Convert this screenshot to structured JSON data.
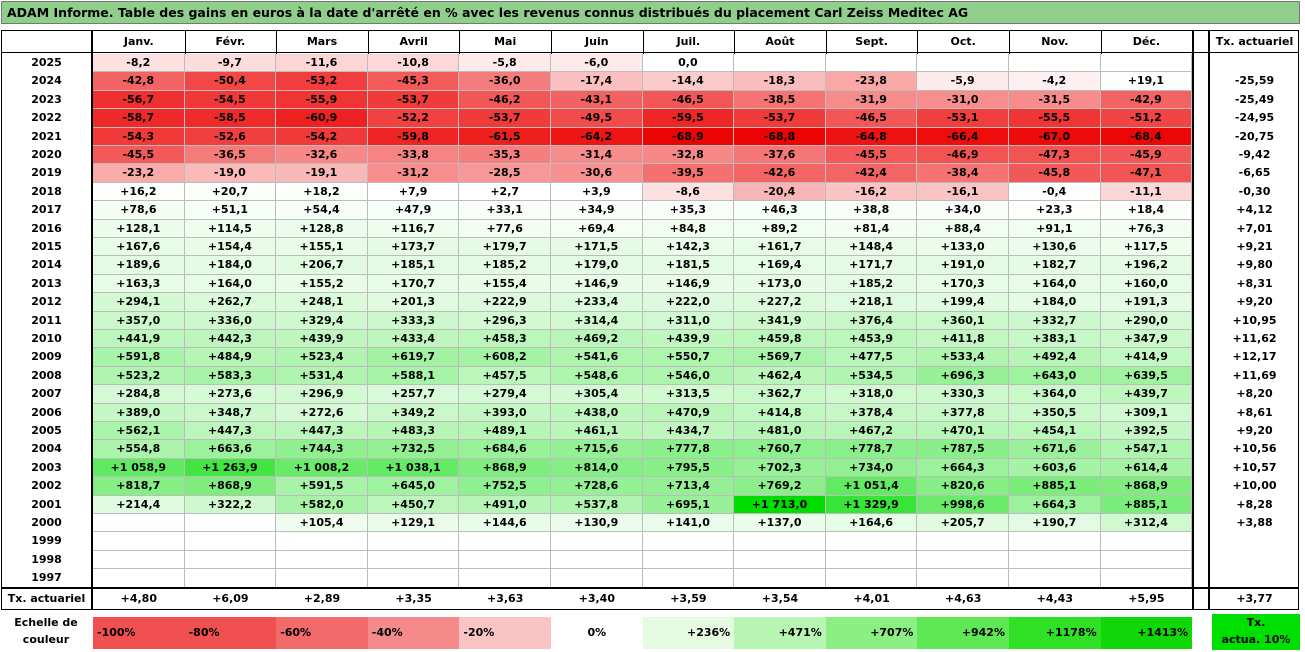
{
  "title": "ADAM Informe. Table des gains en euros à la date d'arrêté en % avec les revenus connus distribués du placement Carl Zeiss Meditec AG",
  "chart_data": {
    "type": "table",
    "months": [
      "Janv.",
      "Févr.",
      "Mars",
      "Avril",
      "Mai",
      "Juin",
      "Juil.",
      "Août",
      "Sept.",
      "Oct.",
      "Nov.",
      "Déc."
    ],
    "actuarial_header": "Tx. actuariel",
    "rows": [
      {
        "year": "2025",
        "values": [
          "-8,2",
          "-9,7",
          "-11,6",
          "-10,8",
          "-5,8",
          "-6,0",
          "0,0",
          "",
          "",
          "",
          "",
          ""
        ],
        "actuarial": ""
      },
      {
        "year": "2024",
        "values": [
          "-42,8",
          "-50,4",
          "-53,2",
          "-45,3",
          "-36,0",
          "-17,4",
          "-14,4",
          "-18,3",
          "-23,8",
          "-5,9",
          "-4,2",
          "+19,1"
        ],
        "actuarial": "-25,59"
      },
      {
        "year": "2023",
        "values": [
          "-56,7",
          "-54,5",
          "-55,9",
          "-53,7",
          "-46,2",
          "-43,1",
          "-46,5",
          "-38,5",
          "-31,9",
          "-31,0",
          "-31,5",
          "-42,9"
        ],
        "actuarial": "-25,49"
      },
      {
        "year": "2022",
        "values": [
          "-58,7",
          "-58,5",
          "-60,9",
          "-52,2",
          "-53,7",
          "-49,5",
          "-59,5",
          "-53,7",
          "-46,5",
          "-53,1",
          "-55,5",
          "-51,2"
        ],
        "actuarial": "-24,95"
      },
      {
        "year": "2021",
        "values": [
          "-54,3",
          "-52,6",
          "-54,2",
          "-59,8",
          "-61,5",
          "-64,2",
          "-68,9",
          "-68,8",
          "-64,8",
          "-66,4",
          "-67,0",
          "-68,4"
        ],
        "actuarial": "-20,75"
      },
      {
        "year": "2020",
        "values": [
          "-45,5",
          "-36,5",
          "-32,6",
          "-33,8",
          "-35,3",
          "-31,4",
          "-32,8",
          "-37,6",
          "-45,5",
          "-46,9",
          "-47,3",
          "-45,9"
        ],
        "actuarial": "-9,42"
      },
      {
        "year": "2019",
        "values": [
          "-23,2",
          "-19,0",
          "-19,1",
          "-31,2",
          "-28,5",
          "-30,6",
          "-39,5",
          "-42,6",
          "-42,4",
          "-38,4",
          "-45,8",
          "-47,1"
        ],
        "actuarial": "-6,65"
      },
      {
        "year": "2018",
        "values": [
          "+16,2",
          "+20,7",
          "+18,2",
          "+7,9",
          "+2,7",
          "+3,9",
          "-8,6",
          "-20,4",
          "-16,2",
          "-16,1",
          "-0,4",
          "-11,1"
        ],
        "actuarial": "-0,30"
      },
      {
        "year": "2017",
        "values": [
          "+78,6",
          "+51,1",
          "+54,4",
          "+47,9",
          "+33,1",
          "+34,9",
          "+35,3",
          "+46,3",
          "+38,8",
          "+34,0",
          "+23,3",
          "+18,4"
        ],
        "actuarial": "+4,12"
      },
      {
        "year": "2016",
        "values": [
          "+128,1",
          "+114,5",
          "+128,8",
          "+116,7",
          "+77,6",
          "+69,4",
          "+84,8",
          "+89,2",
          "+81,4",
          "+88,4",
          "+91,1",
          "+76,3"
        ],
        "actuarial": "+7,01"
      },
      {
        "year": "2015",
        "values": [
          "+167,6",
          "+154,4",
          "+155,1",
          "+173,7",
          "+179,7",
          "+171,5",
          "+142,3",
          "+161,7",
          "+148,4",
          "+133,0",
          "+130,6",
          "+117,5"
        ],
        "actuarial": "+9,21"
      },
      {
        "year": "2014",
        "values": [
          "+189,6",
          "+184,0",
          "+206,7",
          "+185,1",
          "+185,2",
          "+179,0",
          "+181,5",
          "+169,4",
          "+171,7",
          "+191,0",
          "+182,7",
          "+196,2"
        ],
        "actuarial": "+9,80"
      },
      {
        "year": "2013",
        "values": [
          "+163,3",
          "+164,0",
          "+155,2",
          "+170,7",
          "+155,4",
          "+146,9",
          "+146,9",
          "+173,0",
          "+185,2",
          "+170,3",
          "+164,0",
          "+160,0"
        ],
        "actuarial": "+8,31"
      },
      {
        "year": "2012",
        "values": [
          "+294,1",
          "+262,7",
          "+248,1",
          "+201,3",
          "+222,9",
          "+233,4",
          "+222,0",
          "+227,2",
          "+218,1",
          "+199,4",
          "+184,0",
          "+191,3"
        ],
        "actuarial": "+9,20"
      },
      {
        "year": "2011",
        "values": [
          "+357,0",
          "+336,0",
          "+329,4",
          "+333,3",
          "+296,3",
          "+314,4",
          "+311,0",
          "+341,9",
          "+376,4",
          "+360,1",
          "+332,7",
          "+290,0"
        ],
        "actuarial": "+10,95"
      },
      {
        "year": "2010",
        "values": [
          "+441,9",
          "+442,3",
          "+439,9",
          "+433,4",
          "+458,3",
          "+469,2",
          "+439,9",
          "+459,8",
          "+453,9",
          "+411,8",
          "+383,1",
          "+347,9"
        ],
        "actuarial": "+11,62"
      },
      {
        "year": "2009",
        "values": [
          "+591,8",
          "+484,9",
          "+523,4",
          "+619,7",
          "+608,2",
          "+541,6",
          "+550,7",
          "+569,7",
          "+477,5",
          "+533,4",
          "+492,4",
          "+414,9"
        ],
        "actuarial": "+12,17"
      },
      {
        "year": "2008",
        "values": [
          "+523,2",
          "+583,3",
          "+531,4",
          "+588,1",
          "+457,5",
          "+548,6",
          "+546,0",
          "+462,4",
          "+534,5",
          "+696,3",
          "+643,0",
          "+639,5"
        ],
        "actuarial": "+11,69"
      },
      {
        "year": "2007",
        "values": [
          "+284,8",
          "+273,6",
          "+296,9",
          "+257,7",
          "+279,4",
          "+305,4",
          "+313,5",
          "+362,7",
          "+318,0",
          "+330,3",
          "+364,0",
          "+439,7"
        ],
        "actuarial": "+8,20"
      },
      {
        "year": "2006",
        "values": [
          "+389,0",
          "+348,7",
          "+272,6",
          "+349,2",
          "+393,0",
          "+438,0",
          "+470,9",
          "+414,8",
          "+378,4",
          "+377,8",
          "+350,5",
          "+309,1"
        ],
        "actuarial": "+8,61"
      },
      {
        "year": "2005",
        "values": [
          "+562,1",
          "+447,3",
          "+447,3",
          "+483,3",
          "+489,1",
          "+461,1",
          "+434,7",
          "+481,0",
          "+467,2",
          "+470,1",
          "+454,1",
          "+392,5"
        ],
        "actuarial": "+9,20"
      },
      {
        "year": "2004",
        "values": [
          "+554,8",
          "+663,6",
          "+744,3",
          "+732,5",
          "+684,6",
          "+715,6",
          "+777,8",
          "+760,7",
          "+778,7",
          "+787,5",
          "+671,6",
          "+547,1"
        ],
        "actuarial": "+10,56"
      },
      {
        "year": "2003",
        "values": [
          "+1 058,9",
          "+1 263,9",
          "+1 008,2",
          "+1 038,1",
          "+868,9",
          "+814,0",
          "+795,5",
          "+702,3",
          "+734,0",
          "+664,3",
          "+603,6",
          "+614,4"
        ],
        "actuarial": "+10,57"
      },
      {
        "year": "2002",
        "values": [
          "+818,7",
          "+868,9",
          "+591,5",
          "+645,0",
          "+752,5",
          "+728,6",
          "+713,4",
          "+769,2",
          "+1 051,4",
          "+820,6",
          "+885,1",
          "+868,9"
        ],
        "actuarial": "+10,00"
      },
      {
        "year": "2001",
        "values": [
          "+214,4",
          "+322,2",
          "+582,0",
          "+450,7",
          "+491,0",
          "+537,8",
          "+695,1",
          "+1 713,0",
          "+1 329,9",
          "+998,6",
          "+664,3",
          "+885,1"
        ],
        "actuarial": "+8,28"
      },
      {
        "year": "2000",
        "values": [
          "",
          "",
          "+105,4",
          "+129,1",
          "+144,6",
          "+130,9",
          "+141,0",
          "+137,0",
          "+164,6",
          "+205,7",
          "+190,7",
          "+312,4"
        ],
        "actuarial": "+3,88"
      },
      {
        "year": "1999",
        "values": [
          "",
          "",
          "",
          "",
          "",
          "",
          "",
          "",
          "",
          "",
          "",
          ""
        ],
        "actuarial": ""
      },
      {
        "year": "1998",
        "values": [
          "",
          "",
          "",
          "",
          "",
          "",
          "",
          "",
          "",
          "",
          "",
          ""
        ],
        "actuarial": ""
      },
      {
        "year": "1997",
        "values": [
          "",
          "",
          "",
          "",
          "",
          "",
          "",
          "",
          "",
          "",
          "",
          ""
        ],
        "actuarial": ""
      }
    ],
    "footer": {
      "label": "Tx. actuariel",
      "values": [
        "+4,80",
        "+6,09",
        "+2,89",
        "+3,35",
        "+3,63",
        "+3,40",
        "+3,59",
        "+3,54",
        "+4,01",
        "+4,63",
        "+4,43",
        "+5,95"
      ],
      "actuarial": "+3,77"
    }
  },
  "scale": {
    "label_line1": "Echelle de",
    "label_line2": "couleur",
    "items": [
      {
        "label": "-100%",
        "color": "#f05050"
      },
      {
        "label": "-80%",
        "color": "#f05050"
      },
      {
        "label": "-60%",
        "color": "#f26a6a"
      },
      {
        "label": "-40%",
        "color": "#f58a8a"
      },
      {
        "label": "-20%",
        "color": "#fac4c4"
      },
      {
        "label": "0%",
        "color": "#ffffff"
      },
      {
        "label": "+236%",
        "color": "#e4fbe2"
      },
      {
        "label": "+471%",
        "color": "#b8f5b2"
      },
      {
        "label": "+707%",
        "color": "#8cef84"
      },
      {
        "label": "+942%",
        "color": "#5ee855"
      },
      {
        "label": "+1178%",
        "color": "#30e026"
      },
      {
        "label": "+1413%",
        "color": "#10d808"
      }
    ],
    "actuarial_line1": "Tx.",
    "actuarial_line2": "actua. 10%"
  }
}
